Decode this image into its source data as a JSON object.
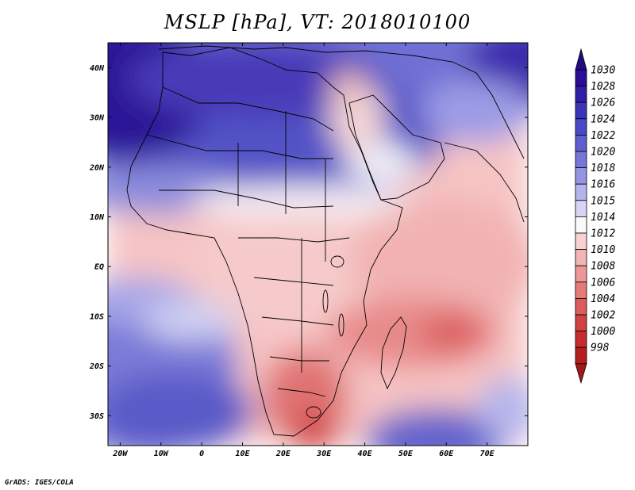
{
  "figure": {
    "title": "MSLP [hPa], VT: 2018010100",
    "credit": "GrADS: IGES/COLA",
    "variable": "Mean sea level pressure",
    "units": "hPa",
    "valid_time": "2018010100"
  },
  "map": {
    "lon_range": [
      -23,
      80
    ],
    "lat_range": [
      -36,
      45
    ],
    "x_ticks": [
      {
        "lon": -20,
        "label": "20W"
      },
      {
        "lon": -10,
        "label": "10W"
      },
      {
        "lon": 0,
        "label": "0"
      },
      {
        "lon": 10,
        "label": "10E"
      },
      {
        "lon": 20,
        "label": "20E"
      },
      {
        "lon": 30,
        "label": "30E"
      },
      {
        "lon": 40,
        "label": "40E"
      },
      {
        "lon": 50,
        "label": "50E"
      },
      {
        "lon": 60,
        "label": "60E"
      },
      {
        "lon": 70,
        "label": "70E"
      }
    ],
    "y_ticks": [
      {
        "lat": 40,
        "label": "40N"
      },
      {
        "lat": 30,
        "label": "30N"
      },
      {
        "lat": 20,
        "label": "20N"
      },
      {
        "lat": 10,
        "label": "10N"
      },
      {
        "lat": 0,
        "label": "EQ"
      },
      {
        "lat": -10,
        "label": "10S"
      },
      {
        "lat": -20,
        "label": "20S"
      },
      {
        "lat": -30,
        "label": "30S"
      }
    ]
  },
  "colorbar": {
    "levels": [
      {
        "label": "1030",
        "color": "#2a0c96"
      },
      {
        "label": "1028",
        "color": "#2f1ea6"
      },
      {
        "label": "1026",
        "color": "#3a35b8"
      },
      {
        "label": "1024",
        "color": "#4a48c4"
      },
      {
        "label": "1022",
        "color": "#5e5ed0"
      },
      {
        "label": "1020",
        "color": "#7676d8"
      },
      {
        "label": "1018",
        "color": "#9494e2"
      },
      {
        "label": "1016",
        "color": "#b4b4ec"
      },
      {
        "label": "1015",
        "color": "#d6d6f4"
      },
      {
        "label": "1014",
        "color": "#fafafa"
      },
      {
        "label": "1012",
        "color": "#f8d2d2"
      },
      {
        "label": "1010",
        "color": "#f2b4b4"
      },
      {
        "label": "1008",
        "color": "#ec9898"
      },
      {
        "label": "1006",
        "color": "#e47a7a"
      },
      {
        "label": "1004",
        "color": "#dc5c5c"
      },
      {
        "label": "1002",
        "color": "#d24040"
      },
      {
        "label": "1000",
        "color": "#c62c2c"
      },
      {
        "label": "998",
        "color": "#b41e1e"
      }
    ],
    "over_color": "#220a80",
    "under_color": "#a01818"
  }
}
